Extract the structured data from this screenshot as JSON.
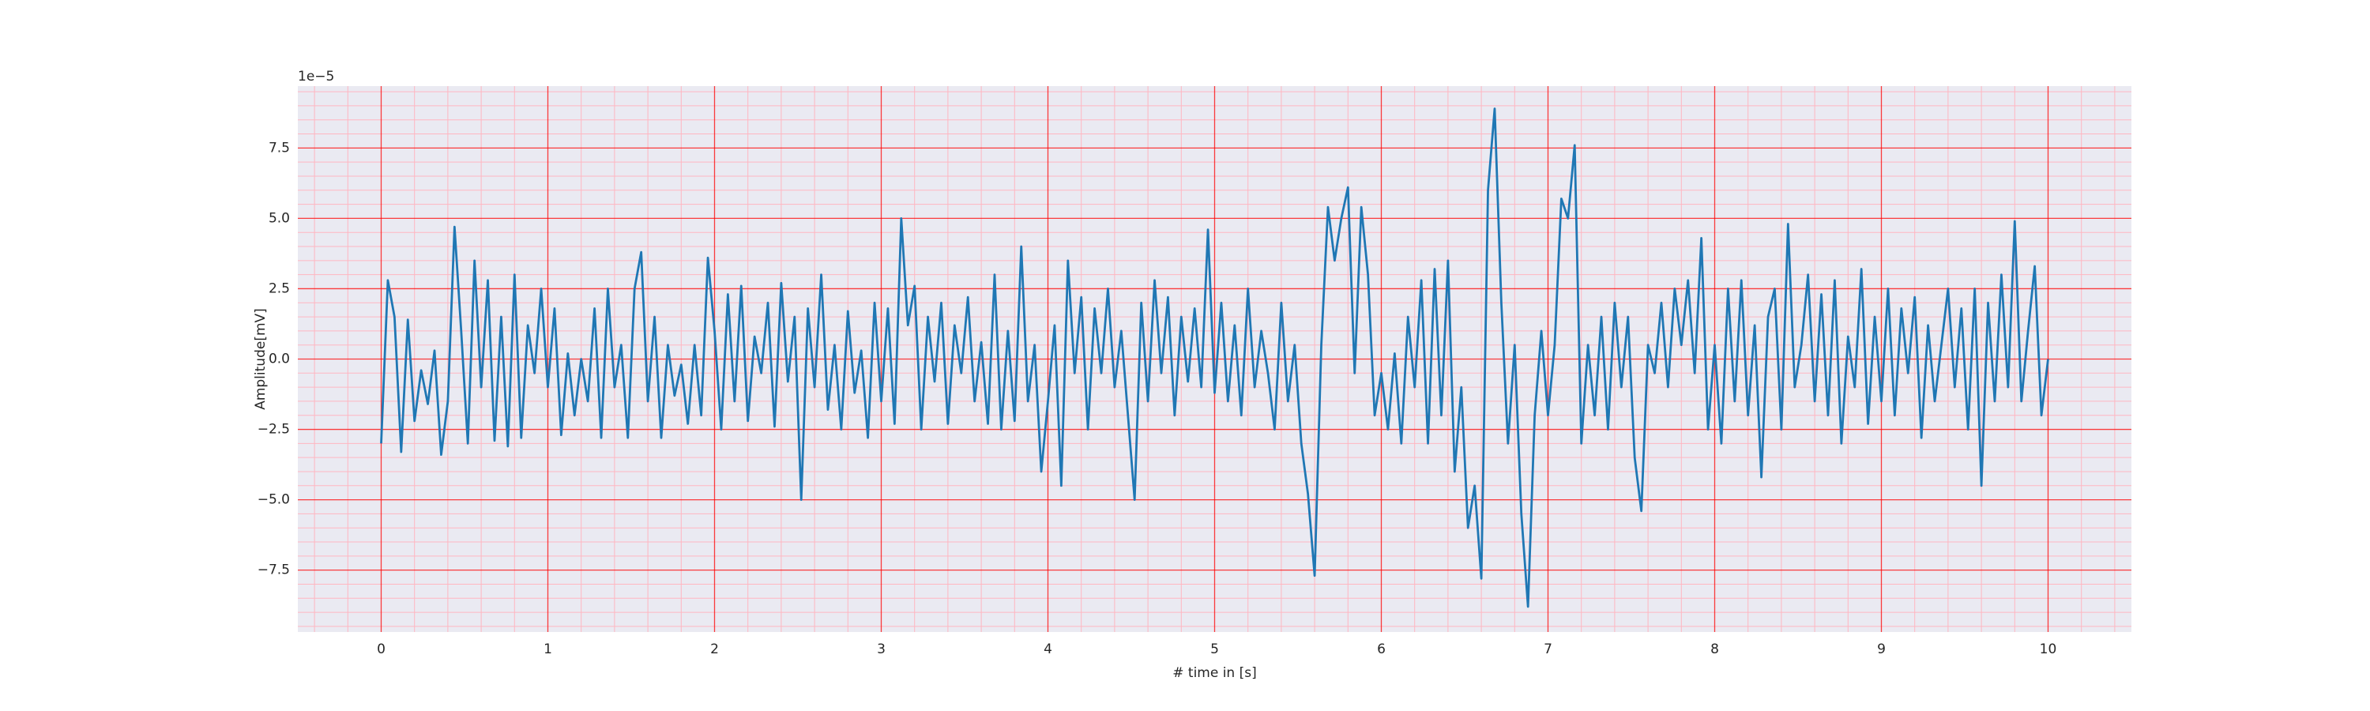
{
  "chart_data": {
    "type": "line",
    "xlabel": "# time in [s]",
    "ylabel": "Amplitude[mV]",
    "y_offset_label": "1e−5",
    "x": [
      0,
      0.04,
      0.08,
      0.12,
      0.16,
      0.2,
      0.24,
      0.28,
      0.32,
      0.36,
      0.4,
      0.44,
      0.48,
      0.52,
      0.56,
      0.6,
      0.64,
      0.68,
      0.72,
      0.76,
      0.8,
      0.84,
      0.88,
      0.92,
      0.96,
      1,
      1.04,
      1.08,
      1.12,
      1.16,
      1.2,
      1.24,
      1.28,
      1.32,
      1.36,
      1.4,
      1.44,
      1.48,
      1.52,
      1.56,
      1.6,
      1.64,
      1.68,
      1.72,
      1.76,
      1.8,
      1.84,
      1.88,
      1.92,
      1.96,
      2,
      2.04,
      2.08,
      2.12,
      2.16,
      2.2,
      2.24,
      2.28,
      2.32,
      2.36,
      2.4,
      2.44,
      2.48,
      2.52,
      2.56,
      2.6,
      2.64,
      2.68,
      2.72,
      2.76,
      2.8,
      2.84,
      2.88,
      2.92,
      2.96,
      3,
      3.04,
      3.08,
      3.12,
      3.16,
      3.2,
      3.24,
      3.28,
      3.32,
      3.36,
      3.4,
      3.44,
      3.48,
      3.52,
      3.56,
      3.6,
      3.64,
      3.68,
      3.72,
      3.76,
      3.8,
      3.84,
      3.88,
      3.92,
      3.96,
      4,
      4.04,
      4.08,
      4.12,
      4.16,
      4.2,
      4.24,
      4.28,
      4.32,
      4.36,
      4.4,
      4.44,
      4.48,
      4.52,
      4.56,
      4.6,
      4.64,
      4.68,
      4.72,
      4.76,
      4.8,
      4.84,
      4.88,
      4.92,
      4.96,
      5,
      5.04,
      5.08,
      5.12,
      5.16,
      5.2,
      5.24,
      5.28,
      5.32,
      5.36,
      5.4,
      5.44,
      5.48,
      5.52,
      5.56,
      5.6,
      5.64,
      5.68,
      5.72,
      5.76,
      5.8,
      5.84,
      5.88,
      5.92,
      5.96,
      6,
      6.04,
      6.08,
      6.12,
      6.16,
      6.2,
      6.24,
      6.28,
      6.32,
      6.36,
      6.4,
      6.44,
      6.48,
      6.52,
      6.56,
      6.6,
      6.64,
      6.68,
      6.72,
      6.76,
      6.8,
      6.84,
      6.88,
      6.92,
      6.96,
      7,
      7.04,
      7.08,
      7.12,
      7.16,
      7.2,
      7.24,
      7.28,
      7.32,
      7.36,
      7.4,
      7.44,
      7.48,
      7.52,
      7.56,
      7.6,
      7.64,
      7.68,
      7.72,
      7.76,
      7.8,
      7.84,
      7.88,
      7.92,
      7.96,
      8,
      8.04,
      8.08,
      8.12,
      8.16,
      8.2,
      8.24,
      8.28,
      8.32,
      8.36,
      8.4,
      8.44,
      8.48,
      8.52,
      8.56,
      8.6,
      8.64,
      8.68,
      8.72,
      8.76,
      8.8,
      8.84,
      8.88,
      8.92,
      8.96,
      9,
      9.04,
      9.08,
      9.12,
      9.16,
      9.2,
      9.24,
      9.28,
      9.32,
      9.36,
      9.4,
      9.44,
      9.48,
      9.52,
      9.56,
      9.6,
      9.64,
      9.68,
      9.72,
      9.76,
      9.8,
      9.84,
      9.88,
      9.92,
      9.96,
      10
    ],
    "series": [
      {
        "color": "#1f77b4",
        "values": [
          -3.0,
          2.8,
          1.5,
          -3.3,
          1.4,
          -2.2,
          -0.4,
          -1.6,
          0.3,
          -3.4,
          -1.5,
          4.7,
          1.0,
          -3.0,
          3.5,
          -1.0,
          2.8,
          -2.9,
          1.5,
          -3.1,
          3.0,
          -2.8,
          1.2,
          -0.5,
          2.5,
          -1.0,
          1.8,
          -2.7,
          0.2,
          -2.0,
          0.0,
          -1.5,
          1.8,
          -2.8,
          2.5,
          -1.0,
          0.5,
          -2.8,
          2.5,
          3.8,
          -1.5,
          1.5,
          -2.8,
          0.5,
          -1.3,
          -0.2,
          -2.3,
          0.5,
          -2.0,
          3.6,
          1.0,
          -2.5,
          2.3,
          -1.5,
          2.6,
          -2.2,
          0.8,
          -0.5,
          2.0,
          -2.4,
          2.7,
          -0.8,
          1.5,
          -5.0,
          1.8,
          -1.0,
          3.0,
          -1.8,
          0.5,
          -2.5,
          1.7,
          -1.2,
          0.3,
          -2.8,
          2.0,
          -1.5,
          1.8,
          -2.3,
          5.0,
          1.2,
          2.6,
          -2.5,
          1.5,
          -0.8,
          2.0,
          -2.3,
          1.2,
          -0.5,
          2.2,
          -1.5,
          0.6,
          -2.3,
          3.0,
          -2.5,
          1.0,
          -2.2,
          4.0,
          -1.5,
          0.5,
          -4.0,
          -1.5,
          1.2,
          -4.5,
          3.5,
          -0.5,
          2.2,
          -2.5,
          1.8,
          -0.5,
          2.5,
          -1.0,
          1.0,
          -2.0,
          -5.0,
          2.0,
          -1.5,
          2.8,
          -0.5,
          2.2,
          -2.0,
          1.5,
          -0.8,
          1.8,
          -1.0,
          4.6,
          -1.2,
          2.0,
          -1.5,
          1.2,
          -2.0,
          2.5,
          -1.0,
          1.0,
          -0.5,
          -2.5,
          2.0,
          -1.5,
          0.5,
          -3.0,
          -4.8,
          -7.7,
          0.5,
          5.4,
          3.5,
          5.0,
          6.1,
          -0.5,
          5.4,
          3.0,
          -2.0,
          -0.5,
          -2.5,
          0.2,
          -3.0,
          1.5,
          -1.0,
          2.8,
          -3.0,
          3.2,
          -2.0,
          3.5,
          -4.0,
          -1.0,
          -6.0,
          -4.5,
          -7.8,
          6.0,
          8.9,
          2.0,
          -3.0,
          0.5,
          -5.5,
          -8.8,
          -2.0,
          1.0,
          -2.0,
          0.5,
          5.7,
          5.0,
          7.6,
          -3.0,
          0.5,
          -2.0,
          1.5,
          -2.5,
          2.0,
          -1.0,
          1.5,
          -3.5,
          -5.4,
          0.5,
          -0.5,
          2.0,
          -1.0,
          2.5,
          0.5,
          2.8,
          -0.5,
          4.3,
          -2.5,
          0.5,
          -3.0,
          2.5,
          -1.5,
          2.8,
          -2.0,
          1.2,
          -4.2,
          1.5,
          2.5,
          -2.5,
          4.8,
          -1.0,
          0.5,
          3.0,
          -1.5,
          2.3,
          -2.0,
          2.8,
          -3.0,
          0.8,
          -1.0,
          3.2,
          -2.3,
          1.5,
          -1.5,
          2.5,
          -2.0,
          1.8,
          -0.5,
          2.2,
          -2.8,
          1.2,
          -1.5,
          0.5,
          2.5,
          -1.0,
          1.8,
          -2.5,
          2.5,
          -4.5,
          2.0,
          -1.5,
          3.0,
          -1.0,
          4.9,
          -1.5,
          1.0,
          3.3,
          -2.0,
          0.0
        ]
      }
    ],
    "xlim": [
      -0.5,
      10.5
    ],
    "ylim": [
      -9.7,
      9.7
    ],
    "xticks": [
      0,
      1,
      2,
      3,
      4,
      5,
      6,
      7,
      8,
      9,
      10
    ],
    "yticks": [
      {
        "value": -7.5,
        "label": "−7.5"
      },
      {
        "value": -5,
        "label": "−5.0"
      },
      {
        "value": -2.5,
        "label": "−2.5"
      },
      {
        "value": 0,
        "label": "0.0"
      },
      2.5,
      {
        "value": 5,
        "label": "5.0"
      },
      7.5
    ],
    "xminorticks": [
      -0.4,
      -0.2,
      0.2,
      0.4,
      0.6,
      0.8,
      1.2,
      1.4,
      1.6,
      1.8,
      2.2,
      2.4,
      2.6,
      2.8,
      3.2,
      3.4,
      3.6,
      3.8,
      4.2,
      4.4,
      4.6,
      4.8,
      5.2,
      5.4,
      5.6,
      5.8,
      6.2,
      6.4,
      6.6,
      6.8,
      7.2,
      7.4,
      7.6,
      7.8,
      8.2,
      8.4,
      8.6,
      8.8,
      9.2,
      9.4,
      9.6,
      9.8,
      10.2,
      10.4
    ],
    "yminorticks": [
      -9.5,
      -9,
      -8.5,
      -8,
      -7,
      -6.5,
      -6,
      -5.5,
      -4.5,
      -4,
      -3.5,
      -3,
      -2,
      -1.5,
      -1,
      -0.5,
      0.5,
      1,
      1.5,
      2,
      3,
      3.5,
      4,
      4.5,
      5.5,
      6,
      6.5,
      7,
      8,
      8.5,
      9,
      9.5
    ],
    "grid": true,
    "minor_grid": true,
    "grid_color": "#ff0000",
    "minor_grid_color": "#ffb6c1",
    "background": "#eaeaf2"
  }
}
